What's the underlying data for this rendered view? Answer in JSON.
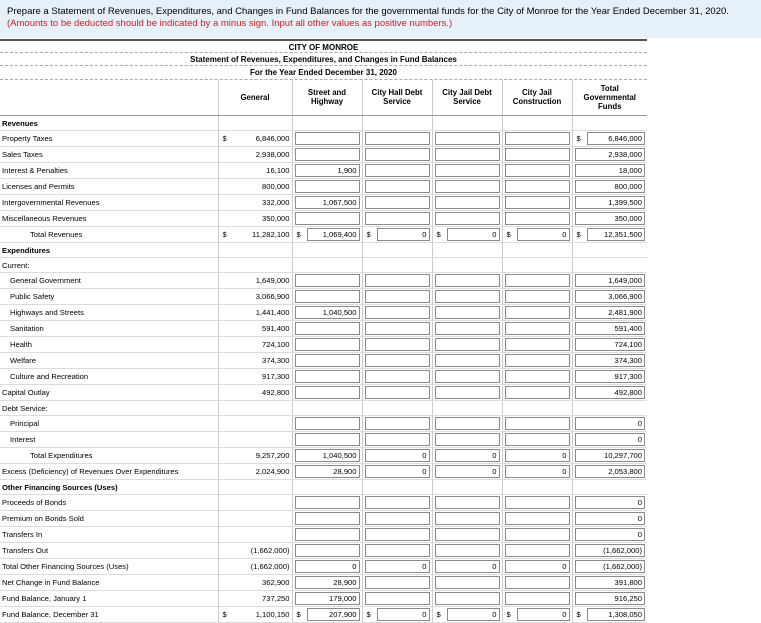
{
  "instruction": {
    "text": "Prepare a Statement of Revenues, Expenditures, and Changes in Fund Balances for the governmental funds for the City of Monroe for the Year Ended December 31, 2020.",
    "note": "(Amounts to be deducted should be indicated by a minus sign. Input all other values as positive numbers.)"
  },
  "header": {
    "entity": "CITY OF MONROE",
    "statement": "Statement of Revenues, Expenditures, and Changes in Fund Balances",
    "period": "For the Year Ended December 31, 2020"
  },
  "columns": [
    "General",
    "Street and Highway",
    "City Hall Debt Service",
    "City Jail Debt Service",
    "City Jail Construction",
    "Total Governmental Funds"
  ],
  "rows": [
    {
      "label": "Revenues",
      "style": "section",
      "values": [
        "",
        "",
        "",
        "",
        "",
        ""
      ]
    },
    {
      "label": "Property Taxes",
      "values": [
        "6,846,000",
        "",
        "",
        "",
        "",
        "6,846,000"
      ],
      "dollar": [
        true,
        false,
        false,
        false,
        false,
        true
      ]
    },
    {
      "label": "Sales Taxes",
      "values": [
        "2,938,000",
        "",
        "",
        "",
        "",
        "2,938,000"
      ]
    },
    {
      "label": "Interest & Penalties",
      "values": [
        "16,100",
        "1,900",
        "",
        "",
        "",
        "18,000"
      ]
    },
    {
      "label": "Licenses and Permits",
      "values": [
        "800,000",
        "",
        "",
        "",
        "",
        "800,000"
      ]
    },
    {
      "label": "Intergovernmental Revenues",
      "values": [
        "332,000",
        "1,067,500",
        "",
        "",
        "",
        "1,399,500"
      ]
    },
    {
      "label": "Miscellaneous Revenues",
      "values": [
        "350,000",
        "",
        "",
        "",
        "",
        "350,000"
      ]
    },
    {
      "label": "Total Revenues",
      "style": "total",
      "values": [
        "11,282,100",
        "1,069,400",
        "0",
        "0",
        "0",
        "12,351,500"
      ],
      "dollar": [
        true,
        true,
        true,
        true,
        true,
        true
      ]
    },
    {
      "label": "Expenditures",
      "style": "section",
      "values": [
        "",
        "",
        "",
        "",
        "",
        ""
      ]
    },
    {
      "label": "Current:",
      "values": [
        "",
        "",
        "",
        "",
        "",
        ""
      ]
    },
    {
      "label": "General Government",
      "indent": 1,
      "values": [
        "1,649,000",
        "",
        "",
        "",
        "",
        "1,649,000"
      ]
    },
    {
      "label": "Public Safety",
      "indent": 1,
      "values": [
        "3,066,900",
        "",
        "",
        "",
        "",
        "3,066,900"
      ]
    },
    {
      "label": "Highways and Streets",
      "indent": 1,
      "values": [
        "1,441,400",
        "1,040,500",
        "",
        "",
        "",
        "2,481,900"
      ]
    },
    {
      "label": "Sanitation",
      "indent": 1,
      "values": [
        "591,400",
        "",
        "",
        "",
        "",
        "591,400"
      ]
    },
    {
      "label": "Health",
      "indent": 1,
      "values": [
        "724,100",
        "",
        "",
        "",
        "",
        "724,100"
      ]
    },
    {
      "label": "Welfare",
      "indent": 1,
      "values": [
        "374,300",
        "",
        "",
        "",
        "",
        "374,300"
      ]
    },
    {
      "label": "Culture and Recreation",
      "indent": 1,
      "values": [
        "917,300",
        "",
        "",
        "",
        "",
        "917,300"
      ]
    },
    {
      "label": "Capital Outlay",
      "values": [
        "492,800",
        "",
        "",
        "",
        "",
        "492,800"
      ]
    },
    {
      "label": "Debt Service:",
      "values": [
        "",
        "",
        "",
        "",
        "",
        ""
      ]
    },
    {
      "label": "Principal",
      "indent": 1,
      "values": [
        "",
        "",
        "",
        "",
        "",
        "0"
      ]
    },
    {
      "label": "Interest",
      "indent": 1,
      "values": [
        "",
        "",
        "",
        "",
        "",
        "0"
      ]
    },
    {
      "label": "Total Expenditures",
      "style": "total",
      "values": [
        "9,257,200",
        "1,040,500",
        "0",
        "0",
        "0",
        "10,297,700"
      ]
    },
    {
      "label": "Excess (Deficiency) of Revenues Over Expenditures",
      "values": [
        "2,024,900",
        "28,900",
        "0",
        "0",
        "0",
        "2,053,800"
      ]
    },
    {
      "label": "Other Financing Sources (Uses)",
      "style": "section",
      "values": [
        "",
        "",
        "",
        "",
        "",
        ""
      ]
    },
    {
      "label": "Proceeds of Bonds",
      "values": [
        "",
        "",
        "",
        "",
        "",
        "0"
      ]
    },
    {
      "label": "Premium on Bonds Sold",
      "values": [
        "",
        "",
        "",
        "",
        "",
        "0"
      ]
    },
    {
      "label": "Transfers In",
      "values": [
        "",
        "",
        "",
        "",
        "",
        "0"
      ]
    },
    {
      "label": "Transfers Out",
      "values": [
        "(1,662,000)",
        "",
        "",
        "",
        "",
        "(1,662,000)"
      ]
    },
    {
      "label": "Total Other Financing Sources (Uses)",
      "values": [
        "(1,662,000)",
        "0",
        "0",
        "0",
        "0",
        "(1,662,000)"
      ]
    },
    {
      "label": "Net Change in Fund Balance",
      "values": [
        "362,900",
        "28,900",
        "",
        "",
        "",
        "391,800"
      ]
    },
    {
      "label": "Fund Balance, January 1",
      "values": [
        "737,250",
        "179,000",
        "",
        "",
        "",
        "916,250"
      ]
    },
    {
      "label": "Fund Balance, December 31",
      "values": [
        "1,100,150",
        "207,900",
        "0",
        "0",
        "0",
        "1,308,050"
      ],
      "dollar": [
        true,
        true,
        true,
        true,
        true,
        true
      ]
    }
  ],
  "currency_symbol": "$"
}
